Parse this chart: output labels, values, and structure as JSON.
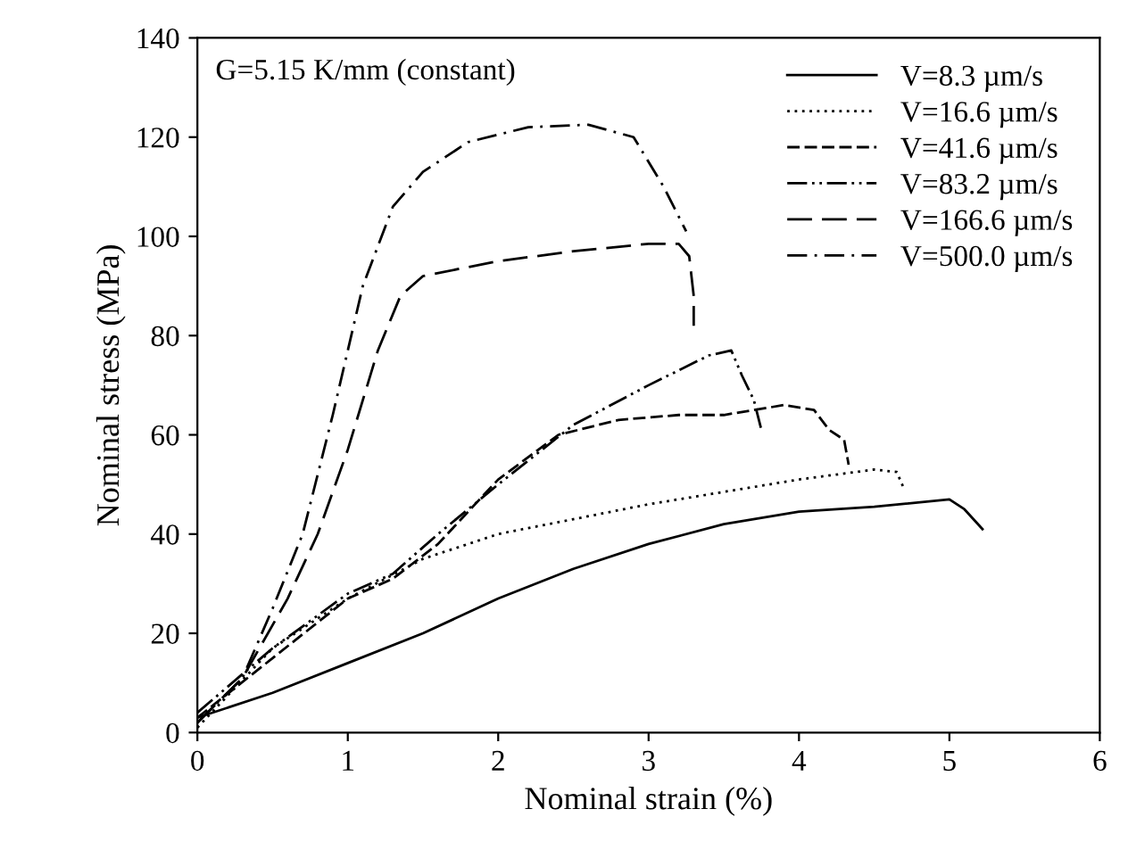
{
  "chart_data": {
    "type": "line",
    "xlabel": "Nominal strain (%)",
    "ylabel": "Nominal stress (MPa)",
    "xlim": [
      0,
      6
    ],
    "ylim": [
      0,
      140
    ],
    "xticks": [
      0,
      1,
      2,
      3,
      4,
      5,
      6
    ],
    "yticks": [
      0,
      20,
      40,
      60,
      80,
      100,
      120,
      140
    ],
    "grid": false,
    "legend": "top right",
    "annotations": [
      "G=5.15 K/mm (constant)"
    ],
    "series": [
      {
        "name": "V=8.3 µm/s",
        "color": "#000000",
        "line_style": "solid",
        "x": [
          0,
          0.5,
          1,
          1.5,
          2,
          2.5,
          3,
          3.5,
          4,
          4.5,
          5,
          5.1,
          5.22
        ],
        "values": [
          3,
          8,
          14,
          20,
          27,
          33,
          38,
          42,
          44.5,
          45.5,
          47,
          45,
          41
        ]
      },
      {
        "name": "V=16.6 µm/s",
        "color": "#000000",
        "line_style": "dotted",
        "x": [
          0,
          0.5,
          1,
          1.5,
          2,
          2.5,
          3,
          3.5,
          4,
          4.5,
          4.65,
          4.7
        ],
        "values": [
          1,
          17,
          27,
          35,
          40,
          43,
          46,
          48.5,
          51,
          53,
          52.5,
          49
        ]
      },
      {
        "name": "V=41.6 µm/s",
        "color": "#000000",
        "line_style": "dashed",
        "x": [
          0,
          0.5,
          1,
          1.3,
          1.6,
          2,
          2.4,
          2.8,
          3.2,
          3.5,
          3.9,
          4.1,
          4.2,
          4.3,
          4.33
        ],
        "values": [
          3,
          15,
          27,
          31,
          38,
          51,
          60,
          63,
          64,
          64,
          66,
          65,
          61,
          59,
          54
        ]
      },
      {
        "name": "V=83.2 µm/s",
        "color": "#000000",
        "line_style": "dashdotdot",
        "x": [
          0,
          0.5,
          1,
          1.3,
          1.6,
          2,
          2.5,
          3,
          3.4,
          3.55,
          3.62,
          3.7,
          3.75
        ],
        "values": [
          4,
          17,
          28,
          32,
          40,
          50,
          62,
          70,
          76,
          77,
          72,
          67,
          61
        ]
      },
      {
        "name": "V=166.6 µm/s",
        "color": "#000000",
        "line_style": "longdash",
        "x": [
          0,
          0.3,
          0.6,
          0.8,
          1,
          1.2,
          1.35,
          1.5,
          2,
          2.5,
          3,
          3.2,
          3.27,
          3.3,
          3.3
        ],
        "values": [
          2,
          11,
          27,
          40,
          57,
          77,
          88,
          92,
          95,
          97,
          98.5,
          98.5,
          96,
          88,
          82
        ]
      },
      {
        "name": "V=500.0 µm/s",
        "color": "#000000",
        "line_style": "dashdot",
        "x": [
          0,
          0.3,
          0.5,
          0.7,
          0.9,
          1.1,
          1.3,
          1.5,
          1.8,
          2.2,
          2.6,
          2.9,
          3.1,
          3.25
        ],
        "values": [
          2,
          11,
          25,
          40,
          64,
          90,
          106,
          113,
          119,
          122,
          122.5,
          120,
          110,
          101
        ]
      }
    ]
  }
}
